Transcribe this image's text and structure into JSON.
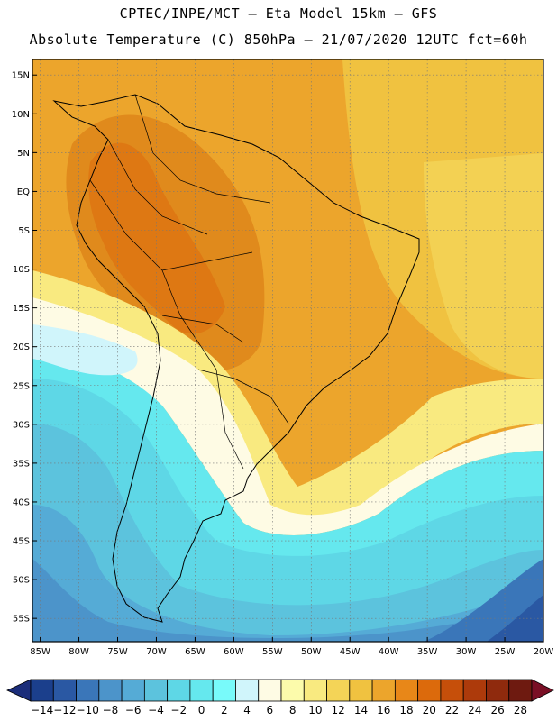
{
  "title": {
    "line1": "CPTEC/INPE/MCT –  Eta Model 15km – GFS",
    "line2": "Absolute Temperature (C) 850hPa – 21/07/2020 12UTC fct=60h"
  },
  "map": {
    "lat_range": [
      -58,
      17
    ],
    "lon_range": [
      -86,
      -20
    ],
    "lat_ticks": [
      {
        "value": 15,
        "label": "15N"
      },
      {
        "value": 10,
        "label": "10N"
      },
      {
        "value": 5,
        "label": "5N"
      },
      {
        "value": 0,
        "label": "EQ"
      },
      {
        "value": -5,
        "label": "5S"
      },
      {
        "value": -10,
        "label": "10S"
      },
      {
        "value": -15,
        "label": "15S"
      },
      {
        "value": -20,
        "label": "20S"
      },
      {
        "value": -25,
        "label": "25S"
      },
      {
        "value": -30,
        "label": "30S"
      },
      {
        "value": -35,
        "label": "35S"
      },
      {
        "value": -40,
        "label": "40S"
      },
      {
        "value": -45,
        "label": "45S"
      },
      {
        "value": -50,
        "label": "50S"
      },
      {
        "value": -55,
        "label": "55S"
      }
    ],
    "lon_ticks": [
      {
        "value": -85,
        "label": "85W"
      },
      {
        "value": -80,
        "label": "80W"
      },
      {
        "value": -75,
        "label": "75W"
      },
      {
        "value": -70,
        "label": "70W"
      },
      {
        "value": -65,
        "label": "65W"
      },
      {
        "value": -60,
        "label": "60W"
      },
      {
        "value": -55,
        "label": "55W"
      },
      {
        "value": -50,
        "label": "50W"
      },
      {
        "value": -45,
        "label": "45W"
      },
      {
        "value": -40,
        "label": "40W"
      },
      {
        "value": -35,
        "label": "35W"
      },
      {
        "value": -30,
        "label": "30W"
      },
      {
        "value": -25,
        "label": "25W"
      },
      {
        "value": -20,
        "label": "20W"
      }
    ],
    "grid": true
  },
  "colorbar": {
    "labels": [
      "-14",
      "-12",
      "-10",
      "-8",
      "-6",
      "-4",
      "-2",
      "0",
      "2",
      "4",
      "6",
      "8",
      "10",
      "12",
      "14",
      "16",
      "18",
      "20",
      "22",
      "24",
      "26",
      "28"
    ],
    "colors": [
      "#1b3f8c",
      "#2a58a3",
      "#3a76b9",
      "#4c94ca",
      "#55abd6",
      "#5cc3dd",
      "#5ed7e6",
      "#65e8ee",
      "#78fafa",
      "#d0f5fb",
      "#fefbe4",
      "#fcfbab",
      "#f9ea80",
      "#f4d457",
      "#f0c240",
      "#eca52c",
      "#e88718",
      "#dc6a0c",
      "#c64f0a",
      "#ad3a0b",
      "#8f2a0d",
      "#6e1a10"
    ],
    "under_color": "#1b2d7a",
    "over_color": "#7a0f25"
  }
}
